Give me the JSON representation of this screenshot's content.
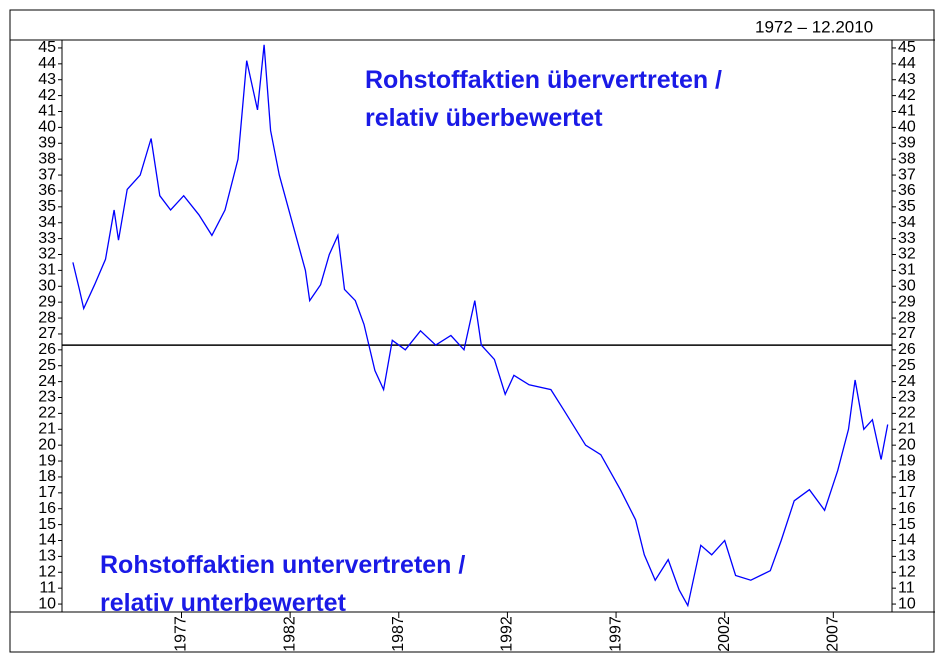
{
  "chart_data": {
    "type": "line",
    "subtitle": "1972 – 12.2010",
    "annotations": [
      "Rohstoffaktien übervertreten /",
      "relativ überbewertet",
      "Rohstoffaktien untervertreten /",
      "relativ unterbewertet"
    ],
    "reference": 26.3,
    "reference_color": "#000000",
    "x": [
      1972.0,
      1972.3,
      1972.5,
      1973.0,
      1973.5,
      1973.9,
      1974.1,
      1974.5,
      1975.1,
      1975.6,
      1976.0,
      1976.5,
      1977.1,
      1977.8,
      1978.4,
      1979.0,
      1979.6,
      1980.0,
      1980.5,
      1980.8,
      1981.1,
      1981.5,
      1982.2,
      1982.7,
      1982.9,
      1983.4,
      1983.8,
      1984.2,
      1984.5,
      1985.0,
      1985.4,
      1985.9,
      1986.3,
      1986.7,
      1987.3,
      1988.0,
      1988.7,
      1989.4,
      1990.0,
      1990.5,
      1990.8,
      1991.4,
      1991.9,
      1992.3,
      1993.0,
      1994.0,
      1994.6,
      1995.6,
      1996.3,
      1997.2,
      1997.9,
      1998.3,
      1998.8,
      1999.4,
      1999.9,
      2000.3,
      2000.9,
      2001.4,
      2002.0,
      2002.5,
      2003.2,
      2004.1,
      2004.6,
      2005.2,
      2005.9,
      2006.6,
      2007.2,
      2007.7,
      2008.0,
      2008.4,
      2008.8,
      2009.2,
      2009.5
    ],
    "series": [
      {
        "color": "#0000ff",
        "values": [
          31.5,
          29.8,
          28.6,
          30.1,
          31.7,
          34.8,
          32.9,
          36.1,
          37.0,
          39.3,
          35.7,
          34.8,
          35.7,
          34.5,
          33.2,
          34.8,
          38.0,
          44.2,
          41.1,
          45.2,
          39.8,
          37.0,
          33.5,
          31.0,
          29.1,
          30.1,
          32.0,
          33.2,
          29.8,
          29.1,
          27.6,
          24.7,
          23.5,
          26.6,
          26.0,
          27.2,
          26.3,
          26.9,
          26.0,
          29.1,
          26.3,
          25.4,
          23.2,
          24.4,
          23.8,
          23.5,
          22.2,
          20.0,
          19.4,
          17.2,
          15.3,
          13.1,
          11.5,
          12.8,
          10.9,
          9.9,
          13.7,
          13.1,
          14.0,
          11.8,
          11.5,
          12.1,
          14.0,
          16.5,
          17.2,
          15.9,
          18.4,
          21.0,
          24.1,
          21.0,
          21.6,
          19.1,
          21.3
        ]
      }
    ],
    "xlim": [
      1971.5,
      2009.7
    ],
    "xticks": [
      1977,
      1982,
      1987,
      1992,
      1997,
      2002,
      2007
    ],
    "ylim": [
      9.5,
      45.5
    ],
    "yticks": [
      10,
      11,
      12,
      13,
      14,
      15,
      16,
      17,
      18,
      19,
      20,
      21,
      22,
      23,
      24,
      25,
      26,
      27,
      28,
      29,
      30,
      31,
      32,
      33,
      34,
      35,
      36,
      37,
      38,
      39,
      40,
      41,
      42,
      43,
      44,
      45
    ]
  }
}
